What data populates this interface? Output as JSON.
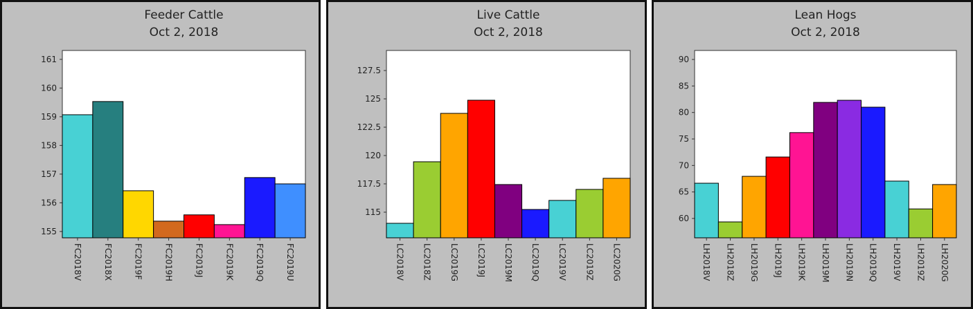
{
  "chart_data": [
    {
      "type": "bar",
      "title": "Feeder Cattle",
      "subtitle": "Oct 2, 2018",
      "categories": [
        "FC2018V",
        "FC2018X",
        "FC2019F",
        "FC2019H",
        "FC2019J",
        "FC2019K",
        "FC2019Q",
        "FC2019U"
      ],
      "values": [
        159.07,
        159.53,
        156.42,
        155.36,
        155.58,
        155.24,
        156.88,
        156.66
      ],
      "colors": [
        "#48d1d4",
        "#267f7f",
        "#ffd700",
        "#d2691e",
        "#ff0000",
        "#ff1493",
        "#1a1aff",
        "#3f8fff"
      ],
      "ylim": [
        154.78,
        161.31
      ],
      "yticks": [
        155,
        156,
        157,
        158,
        159,
        160,
        161
      ]
    },
    {
      "type": "bar",
      "title": "Live Cattle",
      "subtitle": "Oct 2, 2018",
      "categories": [
        "LC2018V",
        "LC2018Z",
        "LC2019G",
        "LC2019J",
        "LC2019M",
        "LC2019Q",
        "LC2019V",
        "LC2019Z",
        "LC2020G"
      ],
      "values": [
        114.02,
        119.45,
        123.72,
        124.88,
        117.44,
        115.24,
        116.04,
        117.01,
        117.99
      ],
      "colors": [
        "#48d1d4",
        "#9acd32",
        "#ffa500",
        "#ff0000",
        "#800080",
        "#1a1aff",
        "#48d1d4",
        "#9acd32",
        "#ffa500"
      ],
      "ylim": [
        112.74,
        129.27
      ],
      "yticks": [
        115,
        117.5,
        120,
        122.5,
        125,
        127.5
      ]
    },
    {
      "type": "bar",
      "title": "Lean Hogs",
      "subtitle": "Oct 2, 2018",
      "categories": [
        "LH2018V",
        "LH2018Z",
        "LH2019G",
        "LH2019J",
        "LH2019K",
        "LH2019M",
        "LH2019N",
        "LH2019Q",
        "LH2019V",
        "LH2019Z",
        "LH2020G"
      ],
      "values": [
        66.65,
        59.35,
        67.95,
        71.6,
        76.2,
        81.9,
        82.3,
        81.0,
        67.05,
        61.8,
        66.4
      ],
      "colors": [
        "#48d1d4",
        "#9acd32",
        "#ffa500",
        "#ff0000",
        "#ff1493",
        "#800080",
        "#8a2be2",
        "#1a1aff",
        "#48d1d4",
        "#9acd32",
        "#ffa500"
      ],
      "ylim": [
        56.35,
        91.7
      ],
      "yticks": [
        60,
        65,
        70,
        75,
        80,
        85,
        90
      ]
    }
  ]
}
